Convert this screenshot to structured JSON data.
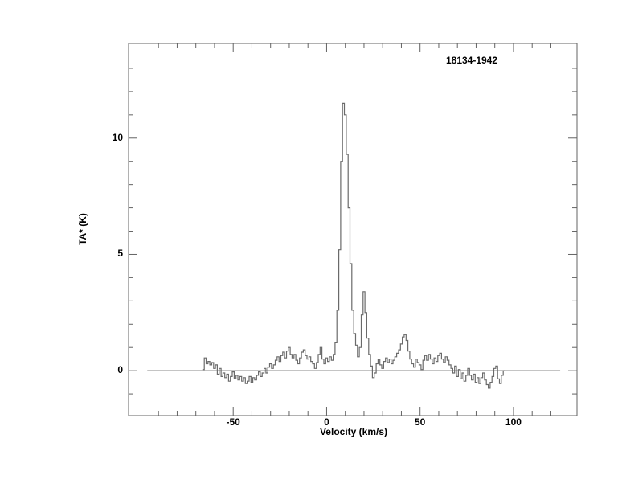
{
  "chart_data": {
    "type": "line",
    "subtype": "histogram-step-spectrum",
    "title": "18134-1942",
    "xlabel": "Velocity (km/s)",
    "ylabel": "TA* (K)",
    "grid": false,
    "legend": "none",
    "colors": {
      "line": "#6a6a6a",
      "axis": "#636363",
      "text": "#000000",
      "background": "#ffffff"
    },
    "x_axis": {
      "label": "Velocity (km/s)",
      "range": [
        -106,
        134
      ],
      "minor_tick_step": 10,
      "minor_tick_from": -90,
      "minor_tick_to": 120,
      "major_ticks": [
        {
          "value": -50,
          "label": "-50"
        },
        {
          "value": 0,
          "label": "0"
        },
        {
          "value": 50,
          "label": "50"
        },
        {
          "value": 100,
          "label": "100"
        }
      ]
    },
    "y_axis": {
      "label": "TA* (K)",
      "range": [
        -1.93,
        14.07
      ],
      "minor_tick_step": 1,
      "minor_tick_from": -1,
      "minor_tick_to": 13,
      "major_ticks": [
        {
          "value": 0,
          "label": "0"
        },
        {
          "value": 5,
          "label": "5"
        },
        {
          "value": 10,
          "label": "10"
        }
      ]
    },
    "baseline": {
      "value": 0,
      "from": -96,
      "to": 125
    },
    "series": [
      {
        "name": "spectrum",
        "x_start": -66,
        "x_step": 1,
        "values": [
          0.05,
          0.55,
          0.3,
          0.4,
          0.25,
          0.35,
          0.1,
          0.25,
          -0.15,
          0.1,
          -0.25,
          -0.1,
          -0.3,
          -0.15,
          -0.45,
          -0.25,
          -0.05,
          -0.35,
          -0.2,
          -0.4,
          -0.25,
          -0.45,
          -0.3,
          -0.55,
          -0.45,
          -0.25,
          -0.5,
          -0.3,
          -0.4,
          -0.2,
          -0.05,
          -0.25,
          -0.1,
          0.1,
          -0.1,
          0.15,
          0.3,
          0.1,
          0.25,
          0.45,
          0.6,
          0.4,
          0.65,
          0.8,
          0.55,
          0.85,
          1.0,
          0.7,
          0.55,
          0.7,
          0.45,
          0.3,
          0.55,
          0.8,
          0.9,
          0.65,
          0.5,
          0.6,
          0.4,
          0.3,
          0.1,
          0.35,
          0.7,
          1.0,
          0.5,
          0.3,
          0.55,
          0.4,
          0.6,
          0.45,
          0.7,
          1.2,
          2.6,
          5.2,
          9.0,
          11.5,
          11.0,
          9.3,
          7.0,
          4.6,
          2.6,
          1.6,
          1.1,
          0.6,
          1.0,
          2.4,
          3.4,
          2.5,
          1.4,
          0.7,
          0.2,
          -0.3,
          -0.1,
          0.3,
          0.5,
          0.25,
          0.1,
          0.4,
          0.55,
          0.35,
          0.5,
          0.3,
          0.45,
          0.6,
          0.75,
          0.9,
          1.15,
          1.45,
          1.55,
          1.3,
          0.85,
          0.5,
          0.3,
          0.15,
          0.5,
          0.35,
          0.25,
          0.05,
          0.45,
          0.65,
          0.45,
          0.7,
          0.5,
          0.3,
          0.55,
          0.4,
          0.65,
          0.75,
          0.5,
          0.35,
          0.6,
          0.45,
          0.25,
          0.1,
          -0.1,
          0.2,
          -0.25,
          0.05,
          -0.35,
          -0.1,
          -0.45,
          -0.2,
          0.1,
          -0.2,
          -0.4,
          -0.15,
          -0.5,
          -0.3,
          -0.55,
          -0.3,
          -0.1,
          -0.4,
          -0.6,
          -0.75,
          -0.5,
          -0.25,
          0.1,
          0.2,
          -0.35,
          -0.55,
          -0.2,
          0.0
        ]
      }
    ]
  }
}
